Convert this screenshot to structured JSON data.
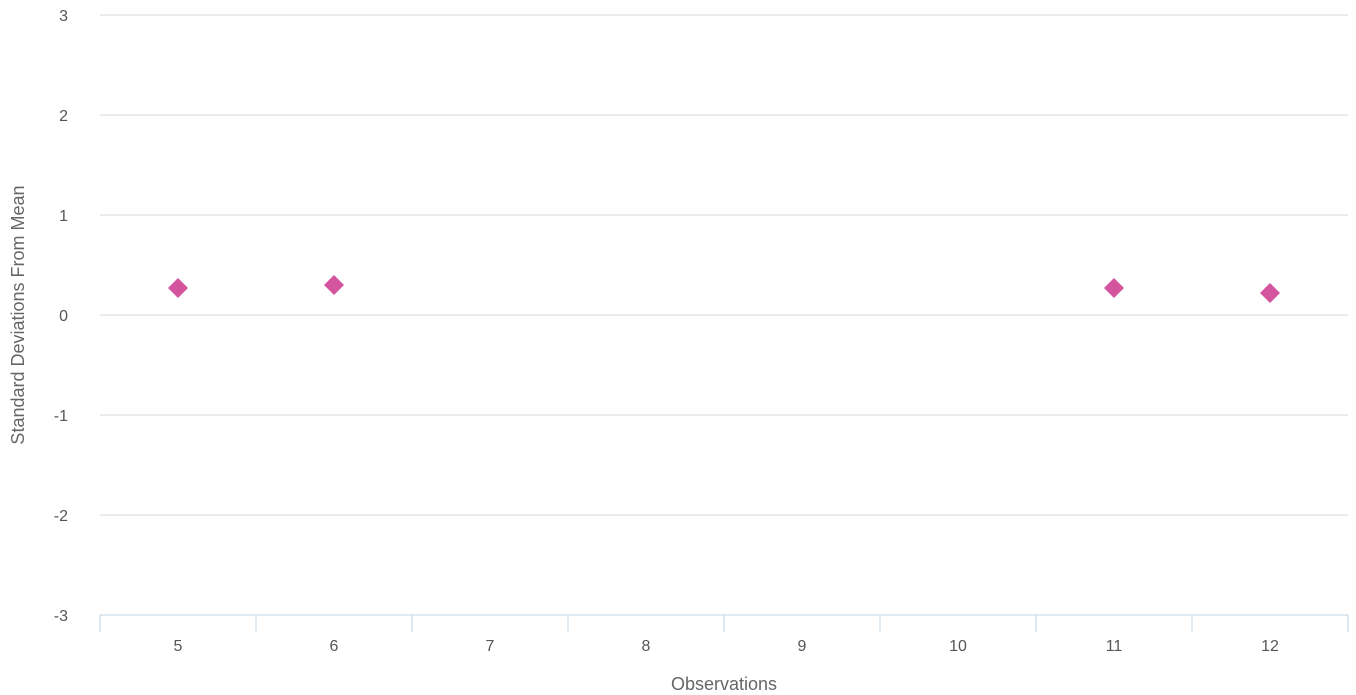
{
  "chart_data": {
    "type": "scatter",
    "title": "",
    "xlabel": "Observations",
    "ylabel": "Standard Deviations From Mean",
    "categories": [
      "5",
      "6",
      "7",
      "8",
      "9",
      "10",
      "11",
      "12"
    ],
    "ylim": [
      -3,
      3
    ],
    "yticks": [
      "3",
      "2",
      "1",
      "0",
      "-1",
      "-2",
      "-3"
    ],
    "grid": true,
    "legend": "none",
    "marker_color": "#d5549e",
    "marker_shape": "diamond",
    "points": [
      {
        "x": "5",
        "y": 0.27
      },
      {
        "x": "6",
        "y": 0.3
      },
      {
        "x": "11",
        "y": 0.27
      },
      {
        "x": "12",
        "y": 0.22
      }
    ]
  }
}
